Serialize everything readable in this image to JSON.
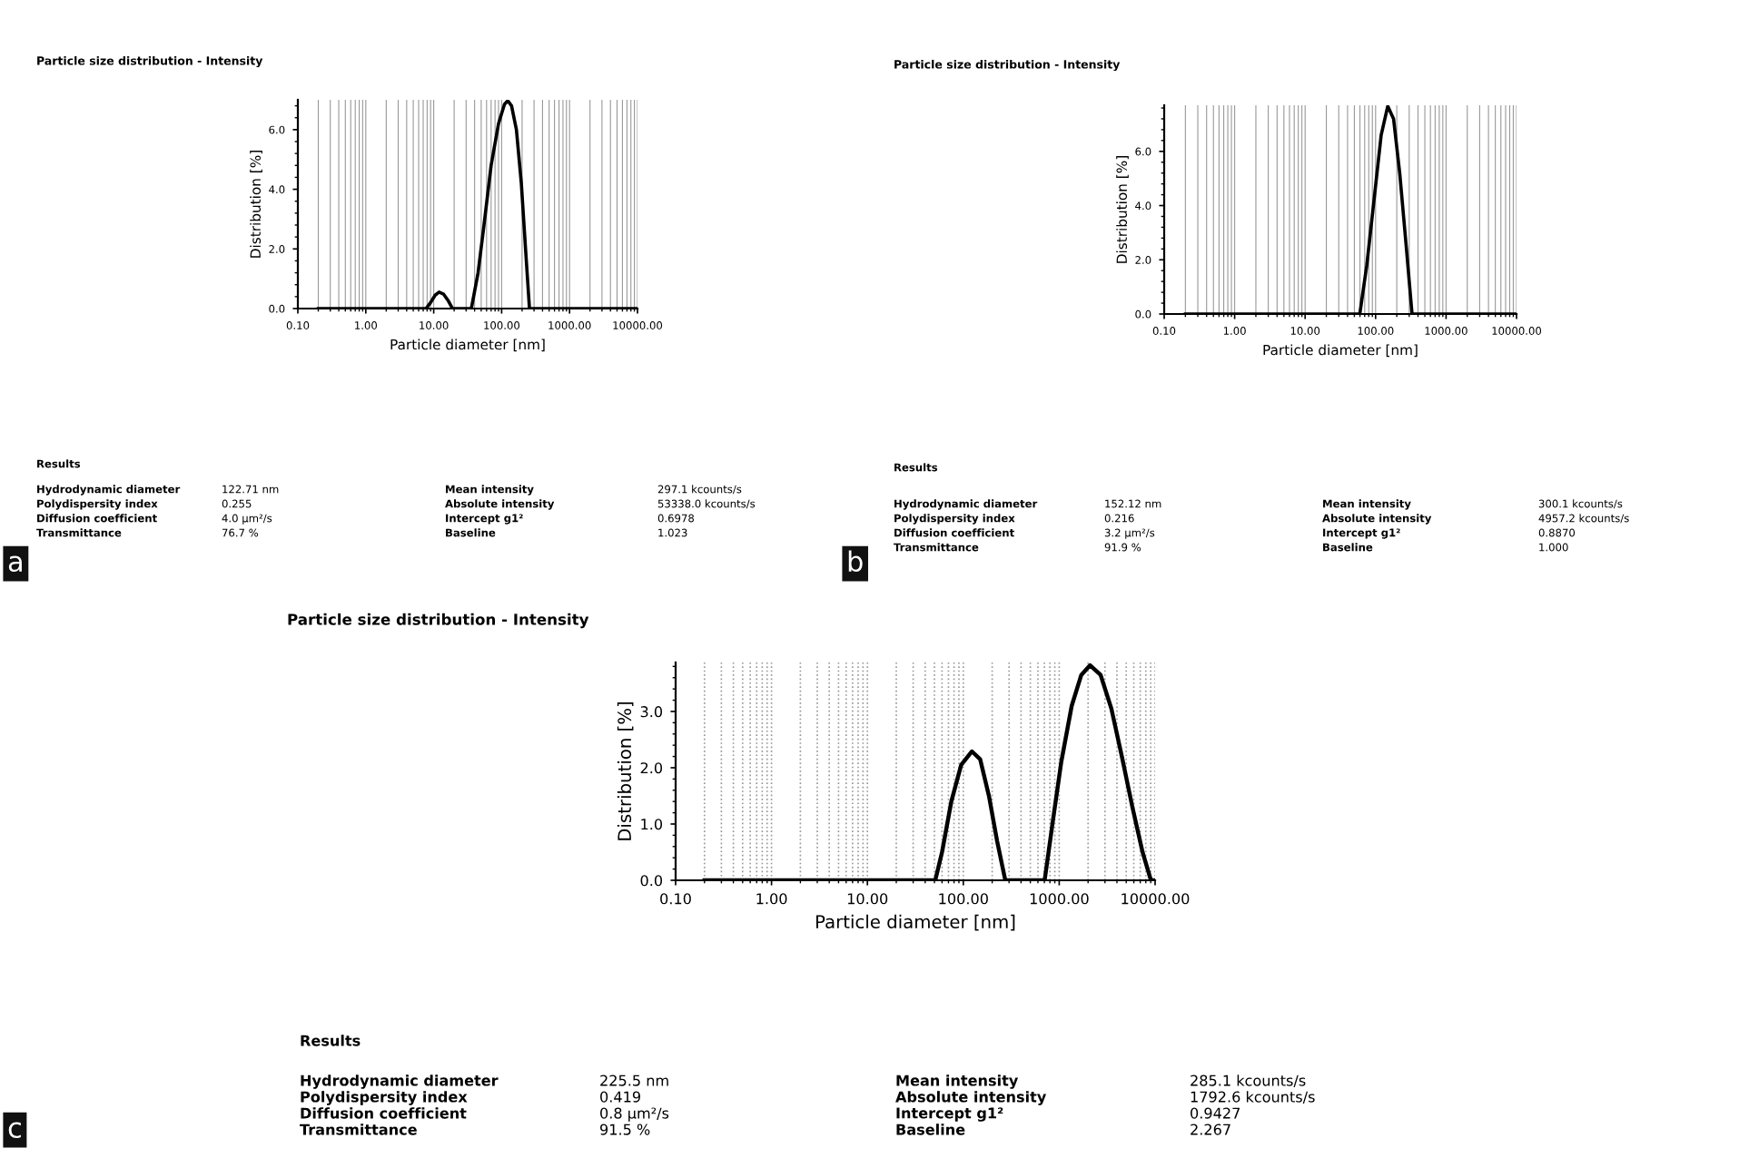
{
  "chart_data": [
    {
      "type": "line",
      "title": "Particle size distribution - Intensity",
      "xlabel": "Particle diameter [nm]",
      "ylabel": "Distribution [%]",
      "log": "x",
      "grid": "x",
      "marker": "none",
      "line_style": "solid",
      "xlim": [
        0.1,
        10000
      ],
      "ylim": [
        0,
        7.0
      ],
      "xticks": [
        {
          "value": 0.1,
          "label": "0.10"
        },
        {
          "value": 1,
          "label": "1.00"
        },
        {
          "value": 10,
          "label": "10.00"
        },
        {
          "value": 100,
          "label": "100.00"
        },
        {
          "value": 1000,
          "label": "1000.00"
        },
        {
          "value": 10000,
          "label": "10000.00"
        }
      ],
      "yticks": [
        {
          "value": 0,
          "label": "0.0"
        },
        {
          "value": 2,
          "label": "2.0"
        },
        {
          "value": 4,
          "label": "4.0"
        },
        {
          "value": 6,
          "label": "6.0"
        }
      ],
      "series": [
        {
          "color": "#000000",
          "x": [
            0.2,
            7.7,
            9,
            10.5,
            12,
            14,
            16.5,
            18.9,
            35.8,
            45,
            55,
            70,
            90,
            110,
            123,
            140,
            165,
            195,
            225,
            257,
            10000
          ],
          "values": [
            0,
            0,
            0.2,
            0.45,
            0.55,
            0.48,
            0.25,
            0,
            0,
            1.2,
            2.8,
            4.8,
            6.2,
            6.85,
            6.97,
            6.8,
            6.0,
            4.2,
            2.0,
            0,
            0
          ]
        }
      ],
      "annotations": [
        "Results",
        "Hydrodynamic diameter",
        "122.71 nm",
        "Mean intensity",
        "297.1 kcounts/s",
        "Polydispersity index",
        "0.255",
        "Absolute intensity",
        "53338.0 kcounts/s",
        "Diffusion coefficient",
        "4.0 µm²/s",
        "Intercept g1²",
        "0.6978",
        "Transmittance",
        "76.7 %",
        "Baseline",
        "1.023",
        "a"
      ]
    },
    {
      "type": "line",
      "title": "Particle size distribution - Intensity",
      "xlabel": "Particle diameter [nm]",
      "ylabel": "Distribution [%]",
      "log": "x",
      "grid": "x",
      "marker": "none",
      "line_style": "solid",
      "xlim": [
        0.1,
        10000
      ],
      "ylim": [
        0,
        7.7
      ],
      "xticks": [
        {
          "value": 0.1,
          "label": "0.10"
        },
        {
          "value": 1,
          "label": "1.00"
        },
        {
          "value": 10,
          "label": "10.00"
        },
        {
          "value": 100,
          "label": "100.00"
        },
        {
          "value": 1000,
          "label": "1000.00"
        },
        {
          "value": 10000,
          "label": "10000.00"
        }
      ],
      "yticks": [
        {
          "value": 0,
          "label": "0.0"
        },
        {
          "value": 2,
          "label": "2.0"
        },
        {
          "value": 4,
          "label": "4.0"
        },
        {
          "value": 6,
          "label": "6.0"
        }
      ],
      "series": [
        {
          "color": "#000000",
          "x": [
            0.2,
            59.7,
            75,
            95,
            120,
            149,
            180,
            220,
            270,
            329,
            10000
          ],
          "values": [
            0,
            0,
            1.8,
            4.2,
            6.6,
            7.67,
            7.2,
            5.2,
            2.6,
            0,
            0
          ]
        }
      ],
      "annotations": [
        "Results",
        "Hydrodynamic diameter",
        "152.12 nm",
        "Mean intensity",
        "300.1 kcounts/s",
        "Polydispersity index",
        "0.216",
        "Absolute intensity",
        "4957.2 kcounts/s",
        "Diffusion coefficient",
        "3.2 µm²/s",
        "Intercept g1²",
        "0.8870",
        "Transmittance",
        "91.9 %",
        "Baseline",
        "1.000",
        "b"
      ]
    },
    {
      "type": "line",
      "title": "Particle size distribution - Intensity",
      "xlabel": "Particle diameter [nm]",
      "ylabel": "Distribution [%]",
      "log": "x",
      "grid": "x",
      "marker": "none",
      "line_style": "solid",
      "xlim": [
        0.1,
        10000
      ],
      "ylim": [
        0,
        3.87
      ],
      "xticks": [
        {
          "value": 0.1,
          "label": "0.10"
        },
        {
          "value": 1,
          "label": "1.00"
        },
        {
          "value": 10,
          "label": "10.00"
        },
        {
          "value": 100,
          "label": "100.00"
        },
        {
          "value": 1000,
          "label": "1000.00"
        },
        {
          "value": 10000,
          "label": "10000.00"
        }
      ],
      "yticks": [
        {
          "value": 0,
          "label": "0.0"
        },
        {
          "value": 1,
          "label": "1.0"
        },
        {
          "value": 2,
          "label": "2.0"
        },
        {
          "value": 3,
          "label": "3.0"
        }
      ],
      "series": [
        {
          "color": "#000000",
          "x": [
            0.2,
            51,
            60,
            75,
            95,
            123,
            150,
            185,
            225,
            274,
            705,
            850,
            1050,
            1350,
            1700,
            2100,
            2700,
            3500,
            4500,
            5800,
            7400,
            9040,
            10000
          ],
          "values": [
            0,
            0,
            0.5,
            1.4,
            2.05,
            2.29,
            2.15,
            1.5,
            0.7,
            0,
            0,
            1.0,
            2.1,
            3.1,
            3.65,
            3.82,
            3.65,
            3.05,
            2.2,
            1.3,
            0.5,
            0,
            0
          ]
        }
      ],
      "annotations": [
        "Results",
        "Hydrodynamic diameter",
        "225.5 nm",
        "Mean intensity",
        "285.1 kcounts/s",
        "Polydispersity index",
        "0.419",
        "Absolute intensity",
        "1792.6 kcounts/s",
        "Diffusion coefficient",
        "0.8 µm²/s",
        "Intercept g1²",
        "0.9427",
        "Transmittance",
        "91.5 %",
        "Baseline",
        "2.267",
        "c"
      ]
    }
  ]
}
